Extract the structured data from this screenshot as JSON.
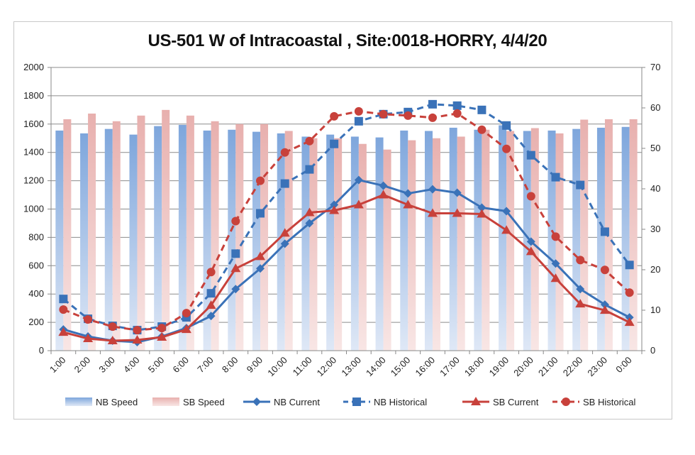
{
  "chart_data": {
    "type": "bar+line",
    "title": "US-501 W of Intracoastal , Site:0018-HORRY, 4/4/20",
    "categories": [
      "1:00",
      "2:00",
      "3:00",
      "4:00",
      "5:00",
      "6:00",
      "7:00",
      "8:00",
      "9:00",
      "10:00",
      "11:00",
      "12:00",
      "13:00",
      "14:00",
      "15:00",
      "16:00",
      "17:00",
      "18:00",
      "19:00",
      "20:00",
      "21:00",
      "22:00",
      "23:00",
      "0:00"
    ],
    "y_left": {
      "range": [
        0,
        2000
      ],
      "ticks": [
        "0",
        "200",
        "400",
        "600",
        "800",
        "1000",
        "1200",
        "1400",
        "1600",
        "1800",
        "2000"
      ]
    },
    "y_right": {
      "range": [
        0,
        70
      ],
      "ticks": [
        "0",
        "10",
        "20",
        "30",
        "40",
        "50",
        "60",
        "70"
      ]
    },
    "grid": true,
    "legend_position": "bottom",
    "series": [
      {
        "name": "NB Speed",
        "kind": "bar",
        "axis": "right",
        "color": "#7ea6dc",
        "values": [
          54.4,
          53.7,
          54.8,
          53.4,
          55.5,
          55.8,
          54.4,
          54.6,
          54.1,
          53.7,
          52.9,
          53.4,
          52.9,
          52.7,
          54.4,
          54.3,
          55.1,
          54.6,
          55.7,
          54.3,
          54.4,
          54.8,
          55.1,
          55.3
        ]
      },
      {
        "name": "SB Speed",
        "kind": "bar",
        "axis": "right",
        "color": "#e8b0ae",
        "values": [
          57.2,
          58.6,
          56.7,
          58.1,
          59.5,
          58.1,
          56.7,
          56.0,
          56.0,
          54.3,
          52.5,
          52.5,
          51.1,
          49.7,
          52.0,
          52.5,
          52.9,
          54.6,
          54.3,
          55.0,
          53.7,
          57.1,
          57.2,
          57.2
        ]
      },
      {
        "name": "NB Current",
        "kind": "line",
        "axis": "left",
        "color": "#3a72b8",
        "dash": false,
        "marker": "diamond",
        "values": [
          150,
          100,
          70,
          60,
          100,
          160,
          245,
          435,
          580,
          755,
          900,
          1030,
          1205,
          1165,
          1110,
          1140,
          1115,
          1010,
          985,
          770,
          615,
          435,
          325,
          235
        ]
      },
      {
        "name": "NB Historical",
        "kind": "line",
        "axis": "left",
        "color": "#3a72b8",
        "dash": true,
        "marker": "square",
        "values": [
          365,
          225,
          175,
          145,
          170,
          235,
          405,
          685,
          970,
          1180,
          1280,
          1460,
          1620,
          1670,
          1685,
          1740,
          1730,
          1700,
          1590,
          1380,
          1225,
          1170,
          840,
          605
        ]
      },
      {
        "name": "SB Current",
        "kind": "line",
        "axis": "left",
        "color": "#c8413b",
        "dash": false,
        "marker": "triangle",
        "values": [
          130,
          85,
          70,
          75,
          95,
          150,
          320,
          580,
          665,
          830,
          975,
          990,
          1030,
          1100,
          1030,
          970,
          970,
          965,
          850,
          700,
          510,
          330,
          285,
          200
        ]
      },
      {
        "name": "SB Historical",
        "kind": "line",
        "axis": "left",
        "color": "#c8413b",
        "dash": true,
        "marker": "circle",
        "values": [
          290,
          220,
          170,
          145,
          160,
          265,
          555,
          915,
          1200,
          1400,
          1480,
          1655,
          1690,
          1670,
          1660,
          1645,
          1675,
          1560,
          1425,
          1090,
          805,
          640,
          570,
          410
        ]
      }
    ]
  }
}
